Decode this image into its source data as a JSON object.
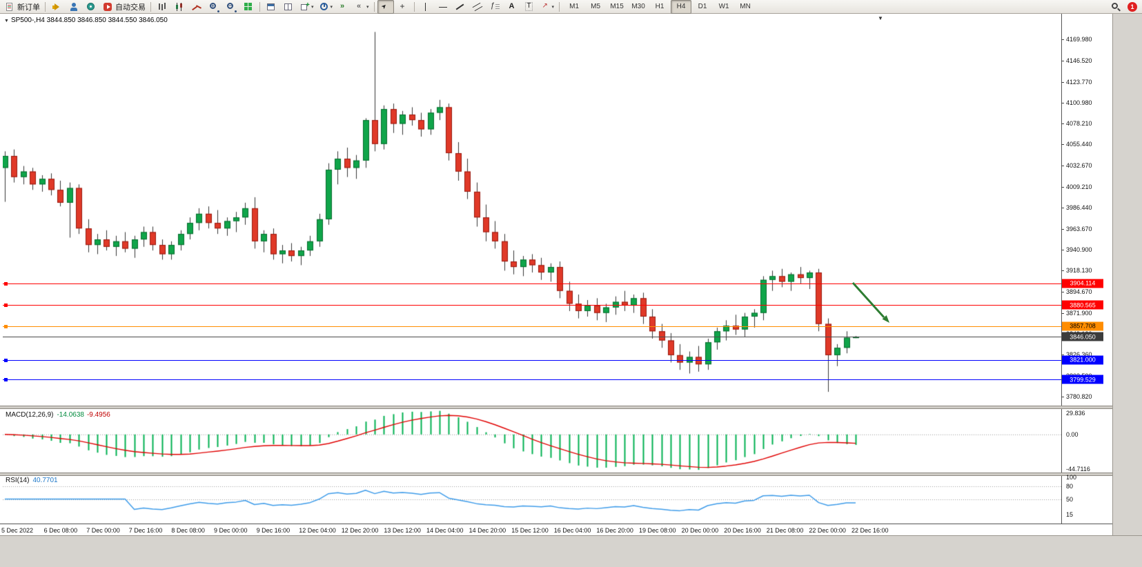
{
  "toolbar": {
    "timeframes": [
      "M1",
      "M5",
      "M15",
      "M30",
      "H1",
      "H4",
      "D1",
      "W1",
      "MN"
    ],
    "active_timeframe": "H4",
    "notification_badge": "1",
    "items": [
      {
        "type": "button",
        "name": "new-order-button",
        "icon": "neworder",
        "label": "新订单"
      },
      {
        "type": "sep"
      },
      {
        "type": "button",
        "name": "sound-alert-button",
        "icon": "horn"
      },
      {
        "type": "button",
        "name": "experts-button",
        "icon": "person"
      },
      {
        "type": "button",
        "name": "history-center-button",
        "icon": "disc"
      },
      {
        "type": "button",
        "name": "autotrading-button",
        "icon": "autotrade",
        "label": "自动交易"
      },
      {
        "type": "sep"
      },
      {
        "type": "button",
        "name": "bar-chart-button",
        "icon": "bars"
      },
      {
        "type": "button",
        "name": "candlestick-chart-button",
        "icon": "candles"
      },
      {
        "type": "button",
        "name": "line-chart-button",
        "icon": "linechart"
      },
      {
        "type": "button",
        "name": "zoom-in-button",
        "icon": "zoomin"
      },
      {
        "type": "button",
        "name": "zoom-out-button",
        "icon": "zoomout"
      },
      {
        "type": "button",
        "name": "tile-windows-button",
        "icon": "grid"
      },
      {
        "type": "sep"
      },
      {
        "type": "button",
        "name": "cascade-windows-button",
        "icon": "win"
      },
      {
        "type": "button",
        "name": "tile-vertical-button",
        "icon": "win2"
      },
      {
        "type": "button",
        "name": "new-chart-button",
        "icon": "newchart",
        "caret": true
      },
      {
        "type": "button",
        "name": "periods-button",
        "icon": "clock",
        "caret": true
      },
      {
        "type": "button",
        "name": "auto-scroll-button",
        "icon": "shift"
      },
      {
        "type": "button",
        "name": "chart-shift-button",
        "icon": "shift2",
        "caret": true
      },
      {
        "type": "sep"
      },
      {
        "type": "button",
        "name": "cursor-button",
        "icon": "cursor",
        "active": true
      },
      {
        "type": "button",
        "name": "crosshair-button",
        "icon": "cross"
      },
      {
        "type": "sep"
      },
      {
        "type": "button",
        "name": "vertical-line-button",
        "icon": "vline"
      },
      {
        "type": "button",
        "name": "horizontal-line-button",
        "icon": "hline"
      },
      {
        "type": "button",
        "name": "trendline-button",
        "icon": "tline"
      },
      {
        "type": "button",
        "name": "equidistant-channel-button",
        "icon": "channel"
      },
      {
        "type": "button",
        "name": "fibonacci-button",
        "icon": "fibo"
      },
      {
        "type": "button",
        "name": "text-button",
        "icon": "textA"
      },
      {
        "type": "button",
        "name": "text-label-button",
        "icon": "textT"
      },
      {
        "type": "button",
        "name": "arrows-button",
        "icon": "shapes",
        "caret": true
      },
      {
        "type": "sep"
      },
      {
        "type": "tf"
      },
      {
        "type": "spacer"
      },
      {
        "type": "button",
        "name": "search-button",
        "icon": "search"
      },
      {
        "type": "badge"
      }
    ]
  },
  "chart_header": {
    "title": "SP500-,H4 3844.850 3846.850 3844.550 3846.050"
  },
  "colors": {
    "up": "#10a54a",
    "up_border": "#076b2d",
    "down": "#e03928",
    "down_border": "#97190f",
    "wick": "#333333",
    "macd_hist": "#00b050",
    "macd_signal": "#e00000",
    "rsi_line": "#3d9be9",
    "current_price_bg": "#3c3c3c"
  },
  "chart_data": [
    {
      "type": "candlestick",
      "symbol": "SP500-",
      "period": "H4",
      "ohlc_display": {
        "open": "3844.850",
        "high": "3846.850",
        "low": "3844.550",
        "close": "3846.050"
      },
      "y_ticks": [
        "4169.980",
        "4146.520",
        "4123.770",
        "4100.980",
        "4078.210",
        "4055.440",
        "4032.670",
        "4009.210",
        "3986.440",
        "3963.670",
        "3940.900",
        "3918.130",
        "3894.670",
        "3871.900",
        "3849.130",
        "3826.360",
        "3803.590",
        "3780.820"
      ],
      "x_labels": [
        "5 Dec 2022",
        "6 Dec 08:00",
        "7 Dec 00:00",
        "7 Dec 16:00",
        "8 Dec 08:00",
        "9 Dec 00:00",
        "9 Dec 16:00",
        "12 Dec 04:00",
        "12 Dec 20:00",
        "13 Dec 12:00",
        "14 Dec 04:00",
        "14 Dec 20:00",
        "15 Dec 12:00",
        "16 Dec 04:00",
        "16 Dec 20:00",
        "19 Dec 08:00",
        "20 Dec 00:00",
        "20 Dec 16:00",
        "21 Dec 08:00",
        "22 Dec 00:00",
        "22 Dec 16:00"
      ],
      "levels": [
        {
          "price": 3904.114,
          "label": "3904.114",
          "color": "#ff0000",
          "text": "#ffffff"
        },
        {
          "price": 3880.565,
          "label": "3880.565",
          "color": "#ff0000",
          "text": "#ffffff"
        },
        {
          "price": 3857.708,
          "label": "3857.708",
          "color": "#ff8d00",
          "text": "#000000"
        },
        {
          "price": 3821.0,
          "label": "3821.000",
          "color": "#0000ff",
          "text": "#ffffff"
        },
        {
          "price": 3799.529,
          "label": "3799.529",
          "color": "#0000ff",
          "text": "#ffffff"
        }
      ],
      "current_price": {
        "value": 3846.05,
        "label": "3846.050"
      },
      "annotations": [
        {
          "type": "arrow",
          "color": "#2e7d32",
          "direction": "down-right",
          "near": "22 Dec, pointing from 3910 toward 3862"
        }
      ],
      "candles": [
        [
          4030,
          4048,
          3993,
          4043
        ],
        [
          4043,
          4050,
          4014,
          4020
        ],
        [
          4020,
          4032,
          4012,
          4026
        ],
        [
          4026,
          4030,
          4006,
          4012
        ],
        [
          4012,
          4022,
          4004,
          4018
        ],
        [
          4018,
          4024,
          4000,
          4006
        ],
        [
          4006,
          4016,
          3988,
          3992
        ],
        [
          3992,
          4014,
          3954,
          4008
        ],
        [
          4008,
          4012,
          3958,
          3964
        ],
        [
          3964,
          3974,
          3938,
          3946
        ],
        [
          3946,
          3958,
          3936,
          3952
        ],
        [
          3952,
          3962,
          3940,
          3944
        ],
        [
          3944,
          3956,
          3934,
          3950
        ],
        [
          3950,
          3960,
          3938,
          3942
        ],
        [
          3942,
          3956,
          3932,
          3952
        ],
        [
          3952,
          3966,
          3944,
          3960
        ],
        [
          3960,
          3966,
          3940,
          3946
        ],
        [
          3946,
          3952,
          3930,
          3936
        ],
        [
          3936,
          3950,
          3930,
          3946
        ],
        [
          3946,
          3962,
          3940,
          3958
        ],
        [
          3958,
          3976,
          3952,
          3970
        ],
        [
          3970,
          3986,
          3962,
          3980
        ],
        [
          3980,
          3988,
          3964,
          3970
        ],
        [
          3970,
          3984,
          3958,
          3964
        ],
        [
          3964,
          3976,
          3956,
          3972
        ],
        [
          3972,
          3982,
          3960,
          3976
        ],
        [
          3976,
          3992,
          3968,
          3986
        ],
        [
          3986,
          3998,
          3942,
          3950
        ],
        [
          3950,
          3962,
          3938,
          3958
        ],
        [
          3958,
          3964,
          3930,
          3936
        ],
        [
          3936,
          3946,
          3926,
          3940
        ],
        [
          3940,
          3948,
          3928,
          3934
        ],
        [
          3934,
          3944,
          3924,
          3940
        ],
        [
          3940,
          3956,
          3934,
          3950
        ],
        [
          3950,
          3980,
          3944,
          3974
        ],
        [
          3974,
          4035,
          3968,
          4028
        ],
        [
          4028,
          4048,
          4012,
          4040
        ],
        [
          4040,
          4052,
          4020,
          4030
        ],
        [
          4030,
          4044,
          4018,
          4038
        ],
        [
          4038,
          4084,
          4030,
          4082
        ],
        [
          4082,
          4178,
          4048,
          4056
        ],
        [
          4056,
          4098,
          4050,
          4094
        ],
        [
          4094,
          4100,
          4068,
          4078
        ],
        [
          4078,
          4092,
          4066,
          4088
        ],
        [
          4088,
          4096,
          4076,
          4082
        ],
        [
          4082,
          4090,
          4064,
          4072
        ],
        [
          4072,
          4094,
          4066,
          4090
        ],
        [
          4090,
          4104,
          4082,
          4096
        ],
        [
          4096,
          4100,
          4038,
          4046
        ],
        [
          4046,
          4058,
          4016,
          4026
        ],
        [
          4026,
          4040,
          3996,
          4004
        ],
        [
          4004,
          4014,
          3966,
          3976
        ],
        [
          3976,
          3990,
          3950,
          3960
        ],
        [
          3960,
          3972,
          3942,
          3950
        ],
        [
          3950,
          3958,
          3918,
          3928
        ],
        [
          3928,
          3940,
          3914,
          3922
        ],
        [
          3922,
          3934,
          3912,
          3930
        ],
        [
          3930,
          3936,
          3916,
          3924
        ],
        [
          3924,
          3932,
          3908,
          3916
        ],
        [
          3916,
          3926,
          3906,
          3922
        ],
        [
          3922,
          3928,
          3888,
          3896
        ],
        [
          3896,
          3906,
          3874,
          3882
        ],
        [
          3882,
          3892,
          3866,
          3874
        ],
        [
          3874,
          3886,
          3868,
          3880
        ],
        [
          3880,
          3888,
          3864,
          3872
        ],
        [
          3872,
          3882,
          3862,
          3878
        ],
        [
          3878,
          3890,
          3870,
          3884
        ],
        [
          3884,
          3896,
          3874,
          3880
        ],
        [
          3880,
          3892,
          3872,
          3888
        ],
        [
          3888,
          3894,
          3860,
          3868
        ],
        [
          3868,
          3876,
          3844,
          3852
        ],
        [
          3852,
          3860,
          3834,
          3842
        ],
        [
          3842,
          3850,
          3818,
          3826
        ],
        [
          3826,
          3838,
          3810,
          3818
        ],
        [
          3818,
          3830,
          3806,
          3824
        ],
        [
          3824,
          3836,
          3808,
          3816
        ],
        [
          3816,
          3844,
          3810,
          3840
        ],
        [
          3840,
          3856,
          3832,
          3852
        ],
        [
          3852,
          3864,
          3842,
          3858
        ],
        [
          3858,
          3870,
          3848,
          3854
        ],
        [
          3854,
          3872,
          3846,
          3868
        ],
        [
          3868,
          3876,
          3856,
          3872
        ],
        [
          3872,
          3912,
          3864,
          3908
        ],
        [
          3908,
          3918,
          3896,
          3912
        ],
        [
          3912,
          3920,
          3900,
          3906
        ],
        [
          3906,
          3916,
          3896,
          3914
        ],
        [
          3914,
          3922,
          3904,
          3910
        ],
        [
          3910,
          3918,
          3898,
          3916
        ],
        [
          3916,
          3920,
          3852,
          3860
        ],
        [
          3860,
          3866,
          3786,
          3826
        ],
        [
          3826,
          3838,
          3814,
          3834
        ],
        [
          3834,
          3852,
          3828,
          3845
        ],
        [
          3844.85,
          3846.85,
          3844.55,
          3846.05
        ]
      ]
    },
    {
      "type": "line",
      "name": "MACD",
      "label": "MACD(12,26,9)",
      "value_main": "-14.0638",
      "value_signal": "-9.4956",
      "params": {
        "fast": 12,
        "slow": 26,
        "signal": 9
      },
      "y_axis_labels": [
        "29.836",
        "0.00",
        "-44.7116"
      ],
      "y_range": [
        29.836,
        -44.7116
      ]
    },
    {
      "type": "line",
      "name": "RSI",
      "label": "RSI(14)",
      "value": "40.7701",
      "period": 14,
      "y_axis_labels": [
        "100",
        "80",
        "50",
        "15"
      ],
      "levels": [
        80,
        50
      ]
    }
  ]
}
